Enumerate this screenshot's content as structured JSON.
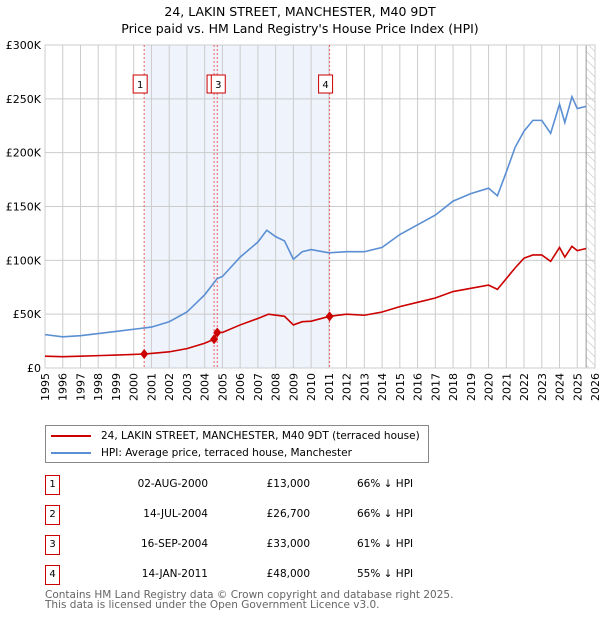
{
  "header": {
    "title": "24, LAKIN STREET, MANCHESTER, M40 9DT",
    "subtitle": "Price paid vs. HM Land Registry's House Price Index (HPI)"
  },
  "chart_data": {
    "type": "line",
    "xlim": [
      1995,
      2026
    ],
    "ylim": [
      0,
      300000
    ],
    "yticks": [
      0,
      50000,
      100000,
      150000,
      200000,
      250000,
      300000
    ],
    "ytick_labels": [
      "£0",
      "£50K",
      "£100K",
      "£150K",
      "£200K",
      "£250K",
      "£300K"
    ],
    "xticks": [
      1995,
      1996,
      1997,
      1998,
      1999,
      2000,
      2001,
      2002,
      2003,
      2004,
      2005,
      2006,
      2007,
      2008,
      2009,
      2010,
      2011,
      2012,
      2013,
      2014,
      2015,
      2016,
      2017,
      2018,
      2019,
      2020,
      2021,
      2022,
      2023,
      2024,
      2025,
      2026
    ],
    "grid": true,
    "shaded_range": [
      2000.59,
      2011.04
    ],
    "future_hatch_from": 2025.5,
    "series": [
      {
        "name": "24, LAKIN STREET, MANCHESTER, M40 9DT (terraced house)",
        "color": "#cc0000",
        "x": [
          1995,
          1996,
          1997,
          1998,
          1999,
          2000.59,
          2001,
          2002,
          2003,
          2004,
          2004.53,
          2004.71,
          2005,
          2006,
          2007,
          2007.6,
          2008.5,
          2009,
          2009.5,
          2010,
          2011.04,
          2012,
          2013,
          2014,
          2015,
          2016,
          2017,
          2018,
          2019,
          2020,
          2020.5,
          2021,
          2021.5,
          2022,
          2022.5,
          2023,
          2023.5,
          2024,
          2024.3,
          2024.7,
          2025,
          2025.5
        ],
        "y": [
          11000,
          10500,
          11000,
          11500,
          12000,
          13000,
          13500,
          15000,
          18000,
          23000,
          26700,
          33000,
          33000,
          40000,
          46000,
          50000,
          48000,
          40000,
          43000,
          43500,
          48000,
          50000,
          49000,
          52000,
          57000,
          61000,
          65000,
          71000,
          74000,
          77000,
          73000,
          83000,
          93000,
          102000,
          105000,
          105000,
          99000,
          112000,
          103000,
          113000,
          109000,
          111000
        ]
      },
      {
        "name": "HPI: Average price, terraced house, Manchester",
        "color": "#5b8fd4",
        "x": [
          1995,
          1996,
          1997,
          1998,
          1999,
          2000,
          2001,
          2002,
          2003,
          2004,
          2004.7,
          2005,
          2006,
          2007,
          2007.5,
          2008,
          2008.5,
          2009,
          2009.5,
          2010,
          2011,
          2012,
          2013,
          2014,
          2015,
          2016,
          2017,
          2018,
          2019,
          2020,
          2020.5,
          2021,
          2021.5,
          2022,
          2022.5,
          2023,
          2023.5,
          2024,
          2024.3,
          2024.7,
          2025,
          2025.5
        ],
        "y": [
          31000,
          29000,
          30000,
          32000,
          34000,
          36000,
          38000,
          43000,
          52000,
          68000,
          83000,
          85000,
          103000,
          117000,
          128000,
          122000,
          118000,
          101000,
          108000,
          110000,
          107000,
          108000,
          108000,
          112000,
          124000,
          133000,
          142000,
          155000,
          162000,
          167000,
          160000,
          182000,
          205000,
          220000,
          230000,
          230000,
          218000,
          245000,
          228000,
          252000,
          241000,
          243000
        ]
      }
    ],
    "sales": [
      {
        "label": "1",
        "x": 2000.59,
        "y": 13000,
        "date": "02-AUG-2000",
        "price": "£13,000",
        "hpi": "66% ↓ HPI"
      },
      {
        "label": "2",
        "x": 2004.53,
        "y": 26700,
        "date": "14-JUL-2004",
        "price": "£26,700",
        "hpi": "66% ↓ HPI"
      },
      {
        "label": "3",
        "x": 2004.71,
        "y": 33000,
        "date": "16-SEP-2004",
        "price": "£33,000",
        "hpi": "61% ↓ HPI"
      },
      {
        "label": "4",
        "x": 2011.04,
        "y": 48000,
        "date": "14-JAN-2011",
        "price": "£48,000",
        "hpi": "55% ↓ HPI"
      }
    ]
  },
  "legend": {
    "red": "24, LAKIN STREET, MANCHESTER, M40 9DT (terraced house)",
    "blue": "HPI: Average price, terraced house, Manchester"
  },
  "footer": {
    "line1": "Contains HM Land Registry data © Crown copyright and database right 2025.",
    "line2": "This data is licensed under the Open Government Licence v3.0."
  }
}
